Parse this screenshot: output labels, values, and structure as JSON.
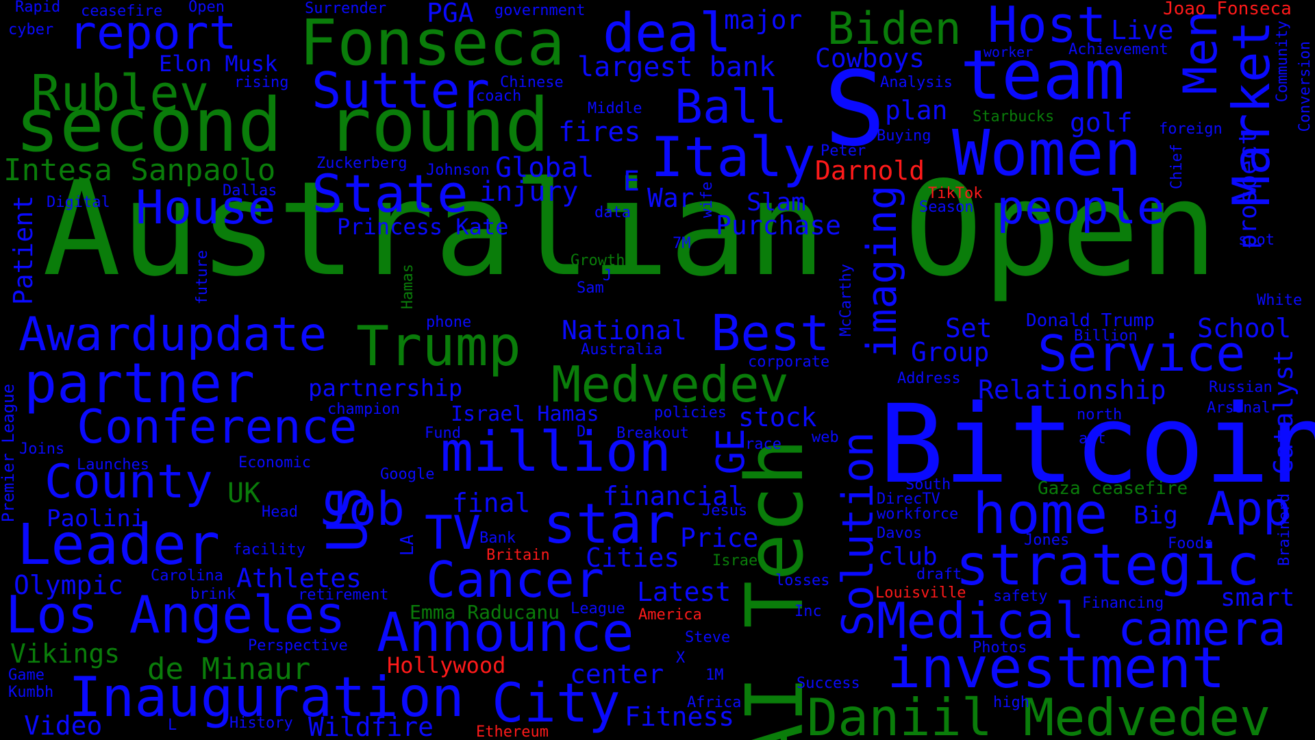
{
  "colors": {
    "background": "#000000",
    "green": "#0a7d0a",
    "blue": "#0a0aff",
    "red": "#ff1a1a"
  },
  "words": [
    {
      "text": "Australian Open",
      "color": "green"
    },
    {
      "text": "Bitcoin",
      "color": "blue"
    },
    {
      "text": "second round",
      "color": "green"
    },
    {
      "text": "AI Tech",
      "color": "green"
    },
    {
      "text": "S",
      "color": "blue"
    },
    {
      "text": "team",
      "color": "blue"
    },
    {
      "text": "Women",
      "color": "blue"
    },
    {
      "text": "Fonseca",
      "color": "green"
    },
    {
      "text": "Rublev",
      "color": "green"
    },
    {
      "text": "report",
      "color": "blue"
    },
    {
      "text": "deal",
      "color": "blue"
    },
    {
      "text": "Biden",
      "color": "green"
    },
    {
      "text": "Host",
      "color": "blue"
    },
    {
      "text": "Sutter",
      "color": "blue"
    },
    {
      "text": "Italy",
      "color": "blue"
    },
    {
      "text": "Ball",
      "color": "blue"
    },
    {
      "text": "Market",
      "color": "blue"
    },
    {
      "text": "Men",
      "color": "blue"
    },
    {
      "text": "Intesa Sanpaolo",
      "color": "green"
    },
    {
      "text": "State",
      "color": "blue"
    },
    {
      "text": "House",
      "color": "blue"
    },
    {
      "text": "people",
      "color": "blue"
    },
    {
      "text": "Awardupdate",
      "color": "blue"
    },
    {
      "text": "Trump",
      "color": "green"
    },
    {
      "text": "Best",
      "color": "blue"
    },
    {
      "text": "imaging",
      "color": "blue"
    },
    {
      "text": "Service",
      "color": "blue"
    },
    {
      "text": "partner",
      "color": "blue"
    },
    {
      "text": "Medvedev",
      "color": "green"
    },
    {
      "text": "Conference",
      "color": "blue"
    },
    {
      "text": "million",
      "color": "blue"
    },
    {
      "text": "US",
      "color": "blue"
    },
    {
      "text": "GE",
      "color": "blue"
    },
    {
      "text": "Solution",
      "color": "blue"
    },
    {
      "text": "County",
      "color": "blue"
    },
    {
      "text": "Job",
      "color": "blue"
    },
    {
      "text": "star",
      "color": "blue"
    },
    {
      "text": "home",
      "color": "blue"
    },
    {
      "text": "App",
      "color": "blue"
    },
    {
      "text": "Leader",
      "color": "blue"
    },
    {
      "text": "TV",
      "color": "blue"
    },
    {
      "text": "strategic",
      "color": "blue"
    },
    {
      "text": "Cancer",
      "color": "blue"
    },
    {
      "text": "Los Angeles",
      "color": "blue"
    },
    {
      "text": "Announce",
      "color": "blue"
    },
    {
      "text": "Medical",
      "color": "blue"
    },
    {
      "text": "camera",
      "color": "blue"
    },
    {
      "text": "investment",
      "color": "blue"
    },
    {
      "text": "Inauguration",
      "color": "blue"
    },
    {
      "text": "City",
      "color": "blue"
    },
    {
      "text": "Daniil Medvedev",
      "color": "green"
    },
    {
      "text": "de Minaur",
      "color": "green"
    },
    {
      "text": "Vikings",
      "color": "green"
    },
    {
      "text": "Olympic",
      "color": "blue"
    },
    {
      "text": "Athletes",
      "color": "blue"
    },
    {
      "text": "Video",
      "color": "blue"
    },
    {
      "text": "Wildfire",
      "color": "blue"
    },
    {
      "text": "Fitness",
      "color": "blue"
    },
    {
      "text": "center",
      "color": "blue"
    },
    {
      "text": "Latest",
      "color": "blue"
    },
    {
      "text": "Cities",
      "color": "blue"
    },
    {
      "text": "Price",
      "color": "blue"
    },
    {
      "text": "financial",
      "color": "blue"
    },
    {
      "text": "final",
      "color": "blue"
    },
    {
      "text": "UK",
      "color": "green"
    },
    {
      "text": "Paolini",
      "color": "blue"
    },
    {
      "text": "stock",
      "color": "blue"
    },
    {
      "text": "National",
      "color": "blue"
    },
    {
      "text": "Group",
      "color": "blue"
    },
    {
      "text": "Set",
      "color": "blue"
    },
    {
      "text": "School",
      "color": "blue"
    },
    {
      "text": "Relationship",
      "color": "blue"
    },
    {
      "text": "Purchase",
      "color": "blue"
    },
    {
      "text": "Slam",
      "color": "blue"
    },
    {
      "text": "War",
      "color": "blue"
    },
    {
      "text": "injury",
      "color": "blue"
    },
    {
      "text": "Global",
      "color": "blue"
    },
    {
      "text": "fires",
      "color": "blue"
    },
    {
      "text": "plan",
      "color": "blue"
    },
    {
      "text": "golf",
      "color": "blue"
    },
    {
      "text": "largest bank",
      "color": "blue"
    },
    {
      "text": "Cowboys",
      "color": "blue"
    },
    {
      "text": "major",
      "color": "blue"
    },
    {
      "text": "Live",
      "color": "blue"
    },
    {
      "text": "PGA",
      "color": "blue"
    },
    {
      "text": "Elon Musk",
      "color": "blue"
    },
    {
      "text": "Princess Kate",
      "color": "blue"
    },
    {
      "text": "partnership",
      "color": "blue"
    },
    {
      "text": "Israel Hamas",
      "color": "blue"
    },
    {
      "text": "Emma Raducanu",
      "color": "green"
    },
    {
      "text": "Darnold",
      "color": "red"
    },
    {
      "text": "Hollywood",
      "color": "red"
    },
    {
      "text": "Joao Fonseca",
      "color": "red"
    },
    {
      "text": "Gaza ceasefire",
      "color": "green"
    },
    {
      "text": "Donald Trump",
      "color": "blue"
    },
    {
      "text": "prospect",
      "color": "blue"
    },
    {
      "text": "Catalyst",
      "color": "blue"
    },
    {
      "text": "Patient",
      "color": "blue"
    },
    {
      "text": "Premier League",
      "color": "blue"
    },
    {
      "text": "Big",
      "color": "blue"
    },
    {
      "text": "club",
      "color": "blue"
    },
    {
      "text": "smart",
      "color": "blue"
    },
    {
      "text": "E",
      "color": "blue"
    },
    {
      "text": "Rapid",
      "color": "blue"
    },
    {
      "text": "ceasefire",
      "color": "blue"
    },
    {
      "text": "Open",
      "color": "blue"
    },
    {
      "text": "Surrender",
      "color": "blue"
    },
    {
      "text": "government",
      "color": "blue"
    },
    {
      "text": "cyber",
      "color": "blue"
    },
    {
      "text": "rising",
      "color": "blue"
    },
    {
      "text": "Chinese",
      "color": "blue"
    },
    {
      "text": "coach",
      "color": "blue"
    },
    {
      "text": "Middle",
      "color": "blue"
    },
    {
      "text": "Analysis",
      "color": "blue"
    },
    {
      "text": "worker",
      "color": "blue"
    },
    {
      "text": "Achievement",
      "color": "blue"
    },
    {
      "text": "Community",
      "color": "blue"
    },
    {
      "text": "Conversion",
      "color": "blue"
    },
    {
      "text": "Chief",
      "color": "blue"
    },
    {
      "text": "Starbucks",
      "color": "green"
    },
    {
      "text": "foreign",
      "color": "blue"
    },
    {
      "text": "Buying",
      "color": "blue"
    },
    {
      "text": "Peter",
      "color": "blue"
    },
    {
      "text": "Zuckerberg",
      "color": "blue"
    },
    {
      "text": "Johnson",
      "color": "blue"
    },
    {
      "text": "Dallas",
      "color": "blue"
    },
    {
      "text": "Digital",
      "color": "blue"
    },
    {
      "text": "TikTok",
      "color": "red"
    },
    {
      "text": "Season",
      "color": "blue"
    },
    {
      "text": "spot",
      "color": "blue"
    },
    {
      "text": "wife",
      "color": "blue"
    },
    {
      "text": "data",
      "color": "blue"
    },
    {
      "text": "7M",
      "color": "blue"
    },
    {
      "text": "Growth",
      "color": "green"
    },
    {
      "text": "J",
      "color": "blue"
    },
    {
      "text": "Sam",
      "color": "blue"
    },
    {
      "text": "Hamas",
      "color": "green"
    },
    {
      "text": "future",
      "color": "blue"
    },
    {
      "text": "McCarthy",
      "color": "blue"
    },
    {
      "text": "White",
      "color": "blue"
    },
    {
      "text": "phone",
      "color": "blue"
    },
    {
      "text": "Australia",
      "color": "blue"
    },
    {
      "text": "corporate",
      "color": "blue"
    },
    {
      "text": "Billion",
      "color": "blue"
    },
    {
      "text": "Address",
      "color": "blue"
    },
    {
      "text": "Russian",
      "color": "blue"
    },
    {
      "text": "Arsenal",
      "color": "blue"
    },
    {
      "text": "north",
      "color": "blue"
    },
    {
      "text": "act",
      "color": "blue"
    },
    {
      "text": "champion",
      "color": "blue"
    },
    {
      "text": "policies",
      "color": "blue"
    },
    {
      "text": "Fund",
      "color": "blue"
    },
    {
      "text": "D",
      "color": "blue"
    },
    {
      "text": "Breakout",
      "color": "blue"
    },
    {
      "text": "race",
      "color": "blue"
    },
    {
      "text": "web",
      "color": "blue"
    },
    {
      "text": "Joins",
      "color": "blue"
    },
    {
      "text": "Launches",
      "color": "blue"
    },
    {
      "text": "Economic",
      "color": "blue"
    },
    {
      "text": "Google",
      "color": "blue"
    },
    {
      "text": "South",
      "color": "blue"
    },
    {
      "text": "DirecTV",
      "color": "blue"
    },
    {
      "text": "workforce",
      "color": "blue"
    },
    {
      "text": "Jesus",
      "color": "blue"
    },
    {
      "text": "Davos",
      "color": "blue"
    },
    {
      "text": "Head",
      "color": "blue"
    },
    {
      "text": "Bank",
      "color": "blue"
    },
    {
      "text": "Jones",
      "color": "blue"
    },
    {
      "text": "Foods",
      "color": "blue"
    },
    {
      "text": "Brainerd",
      "color": "blue"
    },
    {
      "text": "facility",
      "color": "blue"
    },
    {
      "text": "LA",
      "color": "blue"
    },
    {
      "text": "Britain",
      "color": "red"
    },
    {
      "text": "Israel",
      "color": "green"
    },
    {
      "text": "Carolina",
      "color": "blue"
    },
    {
      "text": "brink",
      "color": "blue"
    },
    {
      "text": "retirement",
      "color": "blue"
    },
    {
      "text": "losses",
      "color": "blue"
    },
    {
      "text": "draft",
      "color": "blue"
    },
    {
      "text": "Louisville",
      "color": "red"
    },
    {
      "text": "safety",
      "color": "blue"
    },
    {
      "text": "Financing",
      "color": "blue"
    },
    {
      "text": "Inc",
      "color": "blue"
    },
    {
      "text": "League",
      "color": "blue"
    },
    {
      "text": "America",
      "color": "red"
    },
    {
      "text": "Steve",
      "color": "blue"
    },
    {
      "text": "Perspective",
      "color": "blue"
    },
    {
      "text": "X",
      "color": "blue"
    },
    {
      "text": "Photos",
      "color": "blue"
    },
    {
      "text": "1M",
      "color": "blue"
    },
    {
      "text": "Game",
      "color": "blue"
    },
    {
      "text": "Kumbh",
      "color": "blue"
    },
    {
      "text": "Success",
      "color": "blue"
    },
    {
      "text": "high",
      "color": "blue"
    },
    {
      "text": "Africa",
      "color": "blue"
    },
    {
      "text": "L",
      "color": "blue"
    },
    {
      "text": "History",
      "color": "blue"
    },
    {
      "text": "Ethereum",
      "color": "red"
    }
  ]
}
